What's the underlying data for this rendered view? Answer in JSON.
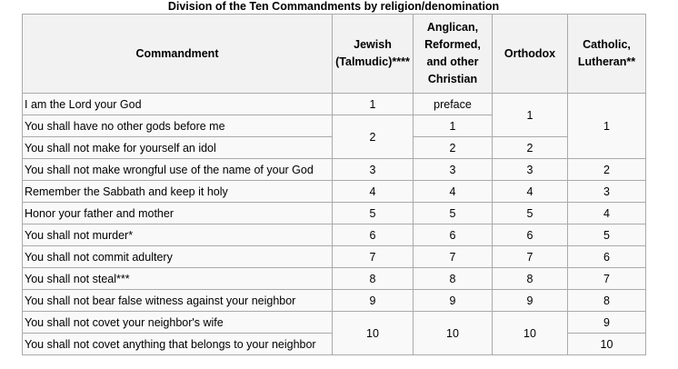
{
  "caption": "Division of the Ten Commandments by religion/denomination",
  "headers": {
    "commandment": "Commandment",
    "jewish_line1": "Jewish",
    "jewish_line2": "(Talmudic)****",
    "anglican_line1": "Anglican,",
    "anglican_line2": "Reformed,",
    "anglican_line3": "and other",
    "anglican_line4": "Christian",
    "orthodox": "Orthodox",
    "catholic_line1": "Catholic,",
    "catholic_line2": "Lutheran**"
  },
  "rows": [
    {
      "text": "I am the Lord your God",
      "anglican": "preface"
    },
    {
      "text": "You shall have no other gods before me",
      "anglican": "1"
    },
    {
      "text": "You shall not make for yourself an idol",
      "anglican": "2",
      "orthodox": "2"
    },
    {
      "text": "You shall not make wrongful use of the name of your God",
      "jewish": "3",
      "anglican": "3",
      "orthodox": "3",
      "catholic": "2"
    },
    {
      "text": "Remember the Sabbath and keep it holy",
      "jewish": "4",
      "anglican": "4",
      "orthodox": "4",
      "catholic": "3"
    },
    {
      "text": "Honor your father and mother",
      "jewish": "5",
      "anglican": "5",
      "orthodox": "5",
      "catholic": "4"
    },
    {
      "text": "You shall not murder*",
      "jewish": "6",
      "anglican": "6",
      "orthodox": "6",
      "catholic": "5"
    },
    {
      "text": "You shall not commit adultery",
      "jewish": "7",
      "anglican": "7",
      "orthodox": "7",
      "catholic": "6"
    },
    {
      "text": "You shall not steal***",
      "jewish": "8",
      "anglican": "8",
      "orthodox": "8",
      "catholic": "7"
    },
    {
      "text": "You shall not bear false witness against your neighbor",
      "jewish": "9",
      "anglican": "9",
      "orthodox": "9",
      "catholic": "8"
    },
    {
      "text": "You shall not covet your neighbor's wife",
      "catholic": "9"
    },
    {
      "text": "You shall not covet anything that belongs to your neighbor",
      "catholic": "10"
    }
  ],
  "merged": {
    "jewish_first": "1",
    "jewish_second": "2",
    "jewish_last": "10",
    "anglican_last": "10",
    "orthodox_first": "1",
    "orthodox_last": "10",
    "catholic_first": "1"
  }
}
